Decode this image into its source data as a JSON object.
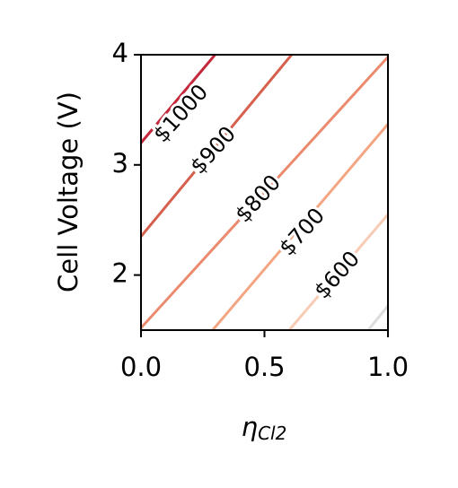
{
  "chart_data": {
    "type": "line",
    "y_label": "Cell Voltage (V)",
    "x_label": {
      "symbol": "η",
      "subscript": "Cl2"
    },
    "xlim": [
      0,
      1
    ],
    "xticks": [
      {
        "value": 0,
        "label": "0.0"
      },
      {
        "value": 0.5,
        "label": "0.5"
      },
      {
        "value": 1,
        "label": "1.0"
      }
    ],
    "ylim": [
      1.5,
      4
    ],
    "yticks": [
      2,
      3,
      4
    ],
    "series": [
      {
        "name": "$1000",
        "color": "#c4283b",
        "x": [
          0,
          0.3
        ],
        "y": [
          3.2,
          4.0
        ]
      },
      {
        "name": "$900",
        "color": "#d6604d",
        "x": [
          0,
          0.61
        ],
        "y": [
          2.35,
          4.0
        ]
      },
      {
        "name": "$800",
        "color": "#ec8a6e",
        "x": [
          0,
          1.0
        ],
        "y": [
          1.52,
          3.98
        ]
      },
      {
        "name": "$700",
        "color": "#f4a582",
        "x": [
          0.29,
          1.0
        ],
        "y": [
          1.5,
          3.37
        ]
      },
      {
        "name": "$600",
        "color": "#f7cbb4",
        "x": [
          0.6,
          1.0
        ],
        "y": [
          1.5,
          2.55
        ]
      },
      {
        "color": "#dddddd",
        "x": [
          0.92,
          1.0
        ],
        "y": [
          1.5,
          1.72
        ]
      }
    ]
  }
}
